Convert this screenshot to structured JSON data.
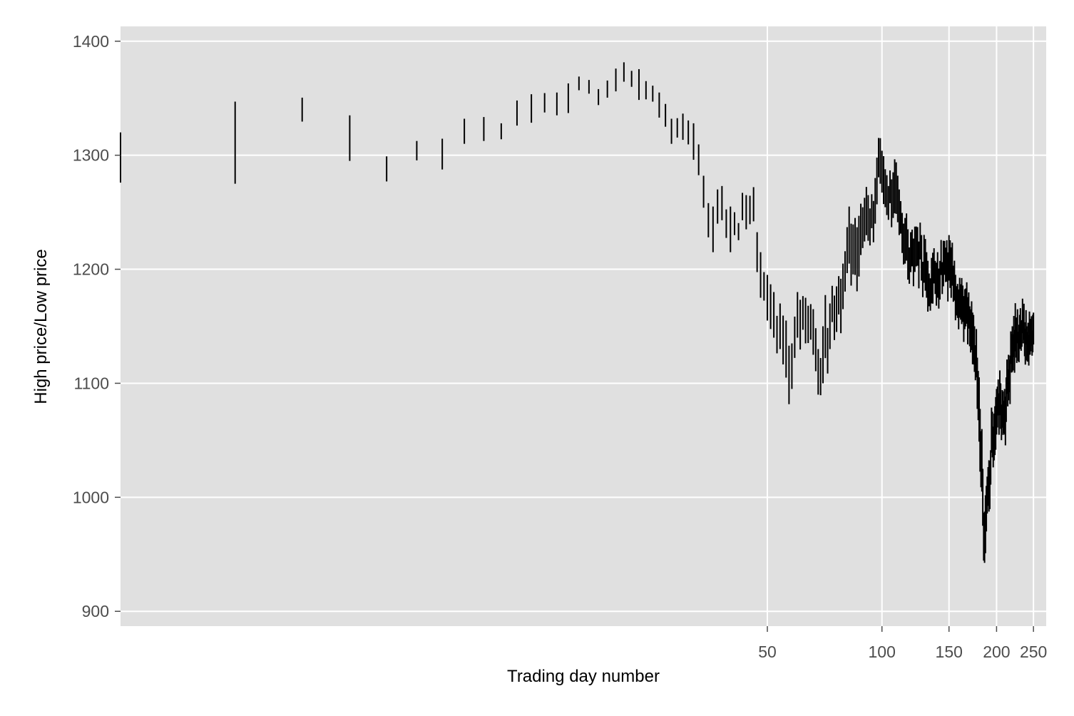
{
  "chart_data": {
    "type": "range",
    "xlabel": "Trading day number",
    "ylabel": "High price/Low price",
    "x_scale": "log",
    "xlim": [
      1,
      270
    ],
    "ylim": [
      887,
      1413
    ],
    "x_ticks": [
      50,
      100,
      150,
      200,
      250
    ],
    "y_ticks": [
      900,
      1000,
      1100,
      1200,
      1300,
      1400
    ],
    "grid": true,
    "background_color": "#e0e0e0",
    "grid_color": "#ffffff",
    "mark_color": "#000000",
    "anchors": [
      [
        1,
        1298,
        44
      ],
      [
        2,
        1311,
        72
      ],
      [
        3,
        1340,
        21
      ],
      [
        4,
        1315,
        40
      ],
      [
        5,
        1288,
        22
      ],
      [
        6,
        1304,
        17
      ],
      [
        7,
        1301,
        27
      ],
      [
        8,
        1321,
        22
      ],
      [
        9,
        1323,
        21
      ],
      [
        10,
        1321,
        14
      ],
      [
        11,
        1337,
        22
      ],
      [
        12,
        1341,
        25
      ],
      [
        13,
        1346,
        17
      ],
      [
        14,
        1345,
        20
      ],
      [
        15,
        1350,
        26
      ],
      [
        16,
        1363,
        12
      ],
      [
        17,
        1360,
        12
      ],
      [
        18,
        1351,
        14
      ],
      [
        19,
        1358,
        15
      ],
      [
        20,
        1366,
        20
      ],
      [
        21,
        1373,
        17
      ],
      [
        22,
        1367,
        14
      ],
      [
        23,
        1362,
        27
      ],
      [
        24,
        1357,
        16
      ],
      [
        25,
        1354,
        14
      ],
      [
        26,
        1344,
        22
      ],
      [
        27,
        1335,
        20
      ],
      [
        28,
        1321,
        22
      ],
      [
        29,
        1324,
        17
      ],
      [
        30,
        1325,
        23
      ],
      [
        31,
        1320,
        21
      ],
      [
        32,
        1312,
        32
      ],
      [
        33,
        1296,
        27
      ],
      [
        34,
        1268,
        28
      ],
      [
        35,
        1243,
        30
      ],
      [
        36,
        1235,
        40
      ],
      [
        37,
        1255,
        30
      ],
      [
        38,
        1258,
        30
      ],
      [
        39,
        1240,
        25
      ],
      [
        40,
        1235,
        40
      ],
      [
        41,
        1240,
        20
      ],
      [
        42,
        1233,
        15
      ],
      [
        43,
        1255,
        24
      ],
      [
        44,
        1250,
        30
      ],
      [
        45,
        1252,
        25
      ],
      [
        46,
        1257,
        30
      ],
      [
        47,
        1215,
        35
      ],
      [
        48,
        1195,
        40
      ],
      [
        49,
        1185,
        25
      ],
      [
        50,
        1175,
        40
      ],
      [
        52,
        1160,
        40
      ],
      [
        54,
        1150,
        40
      ],
      [
        56,
        1130,
        50
      ],
      [
        58,
        1115,
        40
      ],
      [
        60,
        1160,
        40
      ],
      [
        63,
        1155,
        40
      ],
      [
        66,
        1145,
        40
      ],
      [
        68,
        1110,
        40
      ],
      [
        70,
        1125,
        50
      ],
      [
        73,
        1150,
        40
      ],
      [
        76,
        1165,
        40
      ],
      [
        79,
        1185,
        40
      ],
      [
        82,
        1230,
        50
      ],
      [
        85,
        1220,
        50
      ],
      [
        88,
        1235,
        45
      ],
      [
        92,
        1245,
        40
      ],
      [
        96,
        1260,
        40
      ],
      [
        99,
        1295,
        40
      ],
      [
        103,
        1265,
        35
      ],
      [
        107,
        1265,
        40
      ],
      [
        111,
        1250,
        40
      ],
      [
        115,
        1225,
        40
      ],
      [
        119,
        1215,
        35
      ],
      [
        123,
        1220,
        35
      ],
      [
        127,
        1210,
        40
      ],
      [
        131,
        1195,
        40
      ],
      [
        135,
        1190,
        40
      ],
      [
        140,
        1195,
        40
      ],
      [
        145,
        1205,
        40
      ],
      [
        150,
        1210,
        40
      ],
      [
        155,
        1190,
        35
      ],
      [
        160,
        1175,
        35
      ],
      [
        165,
        1165,
        35
      ],
      [
        170,
        1150,
        35
      ],
      [
        175,
        1130,
        40
      ],
      [
        178,
        1100,
        45
      ],
      [
        181,
        1050,
        55
      ],
      [
        184,
        1000,
        50
      ],
      [
        186,
        965,
        45
      ],
      [
        188,
        990,
        40
      ],
      [
        191,
        1010,
        45
      ],
      [
        195,
        1055,
        40
      ],
      [
        200,
        1075,
        40
      ],
      [
        205,
        1080,
        40
      ],
      [
        210,
        1075,
        40
      ],
      [
        215,
        1105,
        40
      ],
      [
        220,
        1130,
        40
      ],
      [
        225,
        1140,
        35
      ],
      [
        230,
        1145,
        30
      ],
      [
        235,
        1150,
        30
      ],
      [
        240,
        1135,
        30
      ],
      [
        245,
        1140,
        30
      ],
      [
        250,
        1148,
        28
      ]
    ]
  }
}
